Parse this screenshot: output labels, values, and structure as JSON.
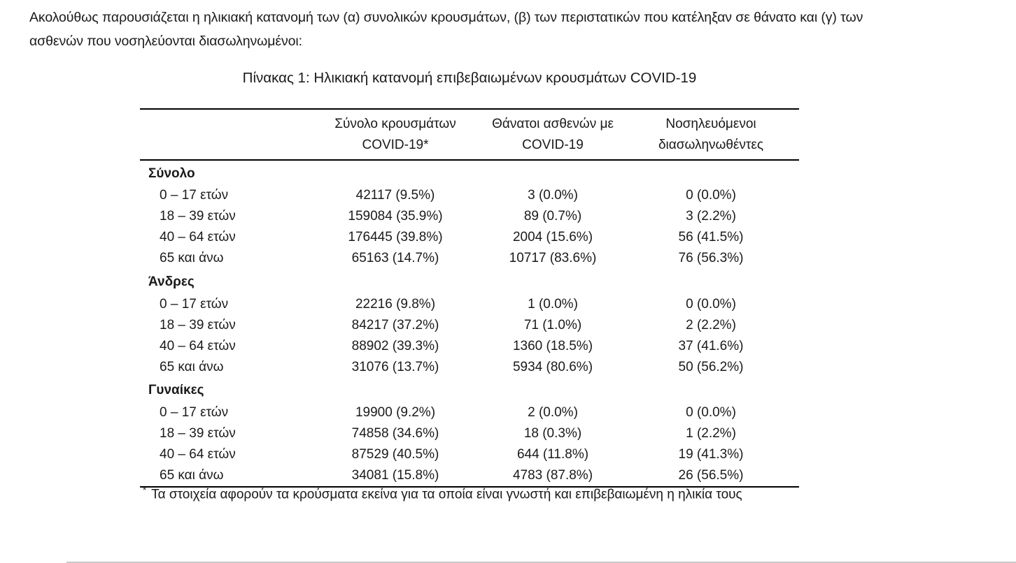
{
  "intro": {
    "lines": [
      "Ακολούθως παρουσιάζεται η ηλικιακή κατανομή των (α) συνολικών κρουσμάτων, (β) των περιστατικών που κατέληξαν σε θάνατο και (γ) των",
      "ασθενών που νοσηλεύονται διασωληνωμένοι:"
    ]
  },
  "table": {
    "title": "Πίνακας 1: Ηλικιακή κατανομή επιβεβαιωμένων κρουσμάτων COVID-19",
    "columns": [
      {
        "line1": "Σύνολο κρουσμάτων",
        "line2": "COVID-19*"
      },
      {
        "line1": "Θάνατοι ασθενών με",
        "line2": "COVID-19"
      },
      {
        "line1": "Νοσηλευόμενοι",
        "line2": "διασωληνωθέντες"
      }
    ],
    "groups": [
      {
        "label": "Σύνολο",
        "rows": [
          {
            "age": "0 – 17 ετών",
            "cases": "42117 (9.5%)",
            "deaths": "3 (0.0%)",
            "intubated": "0 (0.0%)"
          },
          {
            "age": "18 – 39 ετών",
            "cases": "159084 (35.9%)",
            "deaths": "89 (0.7%)",
            "intubated": "3 (2.2%)"
          },
          {
            "age": "40 – 64 ετών",
            "cases": "176445 (39.8%)",
            "deaths": "2004 (15.6%)",
            "intubated": "56 (41.5%)"
          },
          {
            "age": "65 και άνω",
            "cases": "65163 (14.7%)",
            "deaths": "10717 (83.6%)",
            "intubated": "76 (56.3%)"
          }
        ]
      },
      {
        "label": "Άνδρες",
        "rows": [
          {
            "age": "0 – 17 ετών",
            "cases": "22216 (9.8%)",
            "deaths": "1 (0.0%)",
            "intubated": "0 (0.0%)"
          },
          {
            "age": "18 – 39 ετών",
            "cases": "84217 (37.2%)",
            "deaths": "71 (1.0%)",
            "intubated": "2 (2.2%)"
          },
          {
            "age": "40 – 64 ετών",
            "cases": "88902 (39.3%)",
            "deaths": "1360 (18.5%)",
            "intubated": "37 (41.6%)"
          },
          {
            "age": "65 και άνω",
            "cases": "31076 (13.7%)",
            "deaths": "5934 (80.6%)",
            "intubated": "50 (56.2%)"
          }
        ]
      },
      {
        "label": "Γυναίκες",
        "rows": [
          {
            "age": "0 – 17 ετών",
            "cases": "19900 (9.2%)",
            "deaths": "2 (0.0%)",
            "intubated": "0 (0.0%)"
          },
          {
            "age": "18 – 39 ετών",
            "cases": "74858 (34.6%)",
            "deaths": "18 (0.3%)",
            "intubated": "1 (2.2%)"
          },
          {
            "age": "40 – 64 ετών",
            "cases": "87529 (40.5%)",
            "deaths": "644 (11.8%)",
            "intubated": "19 (41.3%)"
          },
          {
            "age": "65 και άνω",
            "cases": "34081 (15.8%)",
            "deaths": "4783 (87.8%)",
            "intubated": "26 (56.5%)"
          }
        ]
      }
    ],
    "footnote_marker": "*",
    "footnote": "Τα στοιχεία αφορούν τα κρούσματα εκείνα για τα οποία είναι γνωστή και επιβεβαιωμένη η ηλικία τους"
  },
  "colors": {
    "text": "#1a1a1a",
    "rule": "#000000",
    "bottom_edge": "#c9c9c9"
  }
}
